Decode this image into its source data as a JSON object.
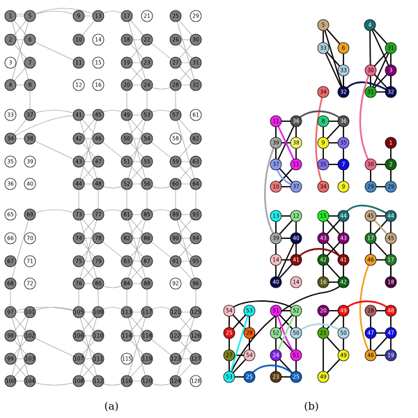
{
  "captions": {
    "a": "(a)",
    "b": "(b)"
  },
  "colors": {
    "gray_node": "#808080",
    "white_node": "#ffffff",
    "stroke": "#000000",
    "edge_gray": "#a0a0a0"
  },
  "panel_a": {
    "white_nodes": [
      3,
      12,
      14,
      15,
      16,
      21,
      29,
      33,
      35,
      36,
      39,
      40,
      58,
      61,
      65,
      66,
      70,
      71,
      72,
      92,
      115,
      128
    ]
  },
  "panel_b": {
    "nodes": [
      {
        "id": "5",
        "c": "#c8a882"
      },
      {
        "id": "4",
        "c": "#1a6f6f"
      },
      {
        "id": "33",
        "c": "#a9cfe0"
      },
      {
        "id": "6",
        "c": "#f0a020"
      },
      {
        "id": "31",
        "c": "#22aa22"
      },
      {
        "id": "33",
        "c": "#a9cfe0"
      },
      {
        "id": "30",
        "c": "#f06a8a"
      },
      {
        "id": "3",
        "c": "#800070"
      },
      {
        "id": "34",
        "c": "#f06a6a"
      },
      {
        "id": "32",
        "c": "#0a0a50"
      },
      {
        "id": "31",
        "c": "#22aa22"
      },
      {
        "id": "32",
        "c": "#0a0a50"
      },
      {
        "id": "11",
        "c": "#f020f0"
      },
      {
        "id": "36",
        "c": "#505050"
      },
      {
        "id": "8",
        "c": "#20d080"
      },
      {
        "id": "36",
        "c": "#505050"
      },
      {
        "id": "1",
        "c": "#7a0a0a"
      },
      {
        "id": "39",
        "c": "#a8a8a8"
      },
      {
        "id": "38",
        "c": "#f8f870"
      },
      {
        "id": "9",
        "c": "#f0f020"
      },
      {
        "id": "35",
        "c": "#8070f0"
      },
      {
        "id": "37",
        "c": "#8a9af0"
      },
      {
        "id": "11",
        "c": "#f020f0"
      },
      {
        "id": "35",
        "c": "#8070f0"
      },
      {
        "id": "7",
        "c": "#1010e0"
      },
      {
        "id": "30",
        "c": "#f06a8a"
      },
      {
        "id": "2",
        "c": "#106010"
      },
      {
        "id": "10",
        "c": "#f07a7a"
      },
      {
        "id": "37",
        "c": "#8a9af0"
      },
      {
        "id": "34",
        "c": "#f06a6a"
      },
      {
        "id": "9",
        "c": "#f0f020"
      },
      {
        "id": "29",
        "c": "#4a8ac0"
      },
      {
        "id": "29",
        "c": "#4a8ac0"
      },
      {
        "id": "13",
        "c": "#20f0f0"
      },
      {
        "id": "12",
        "c": "#90e090"
      },
      {
        "id": "15",
        "c": "#20f020"
      },
      {
        "id": "44",
        "c": "#1a6f6f"
      },
      {
        "id": "45",
        "c": "#c8a882"
      },
      {
        "id": "44",
        "c": "#1a6f6f"
      },
      {
        "id": "39",
        "c": "#a8a8a8"
      },
      {
        "id": "40",
        "c": "#0a0a50"
      },
      {
        "id": "43",
        "c": "#800070"
      },
      {
        "id": "43",
        "c": "#800070"
      },
      {
        "id": "17",
        "c": "#22772a"
      },
      {
        "id": "45",
        "c": "#c8a882"
      },
      {
        "id": "14",
        "c": "#f8c0c8"
      },
      {
        "id": "41",
        "c": "#8a0a0a"
      },
      {
        "id": "42",
        "c": "#106010"
      },
      {
        "id": "41",
        "c": "#8a0a0a"
      },
      {
        "id": "46",
        "c": "#f0a020"
      },
      {
        "id": "17",
        "c": "#22772a"
      },
      {
        "id": "40",
        "c": "#0a0a50"
      },
      {
        "id": "14",
        "c": "#f8c0c8"
      },
      {
        "id": "16",
        "c": "#5a5a1a"
      },
      {
        "id": "42",
        "c": "#106010"
      },
      {
        "id": "18",
        "c": "#500040"
      },
      {
        "id": "54",
        "c": "#f8c0c8"
      },
      {
        "id": "53",
        "c": "#20f0f0"
      },
      {
        "id": "51",
        "c": "#f020f0"
      },
      {
        "id": "52",
        "c": "#90e090"
      },
      {
        "id": "20",
        "c": "#800070"
      },
      {
        "id": "49",
        "c": "#f01010"
      },
      {
        "id": "28",
        "c": "#b06060"
      },
      {
        "id": "48",
        "c": "#f01010"
      },
      {
        "id": "25",
        "c": "#e01010"
      },
      {
        "id": "28",
        "c": "#f06010"
      },
      {
        "id": "52",
        "c": "#90e090"
      },
      {
        "id": "50",
        "c": "#b0d8e8"
      },
      {
        "id": "21",
        "c": "#55aa10"
      },
      {
        "id": "50",
        "c": "#b0d8e8"
      },
      {
        "id": "47",
        "c": "#1010e0"
      },
      {
        "id": "47",
        "c": "#1010e0"
      },
      {
        "id": "27",
        "c": "#808020"
      },
      {
        "id": "54",
        "c": "#f8c0c8"
      },
      {
        "id": "24",
        "c": "#8020e0"
      },
      {
        "id": "51",
        "c": "#f020f0"
      },
      {
        "id": "49",
        "c": "#f0f020"
      },
      {
        "id": "46",
        "c": "#f0a020"
      },
      {
        "id": "19",
        "c": "#3a3aa0"
      },
      {
        "id": "53",
        "c": "#20f0f0"
      },
      {
        "id": "25",
        "c": "#1060c0"
      },
      {
        "id": "23",
        "c": "#5a3a10"
      },
      {
        "id": "25",
        "c": "#1060c0"
      },
      {
        "id": "49",
        "c": "#f0f020"
      }
    ],
    "colored_links": [
      {
        "c": "#f06a6a"
      },
      {
        "c": "#0a0a50"
      },
      {
        "c": "#f06a8a"
      },
      {
        "c": "#505050"
      },
      {
        "c": "#f020f0"
      },
      {
        "c": "#a8a8a8"
      },
      {
        "c": "#8a9af0"
      },
      {
        "c": "#1a6f6f"
      },
      {
        "c": "#8a0a0a"
      },
      {
        "c": "#c8a882"
      },
      {
        "c": "#f0a020"
      },
      {
        "c": "#f01010"
      },
      {
        "c": "#b0d8e8"
      },
      {
        "c": "#20f0f0"
      },
      {
        "c": "#1060c0"
      },
      {
        "c": "#f020f0"
      },
      {
        "c": "#90e090"
      }
    ]
  }
}
